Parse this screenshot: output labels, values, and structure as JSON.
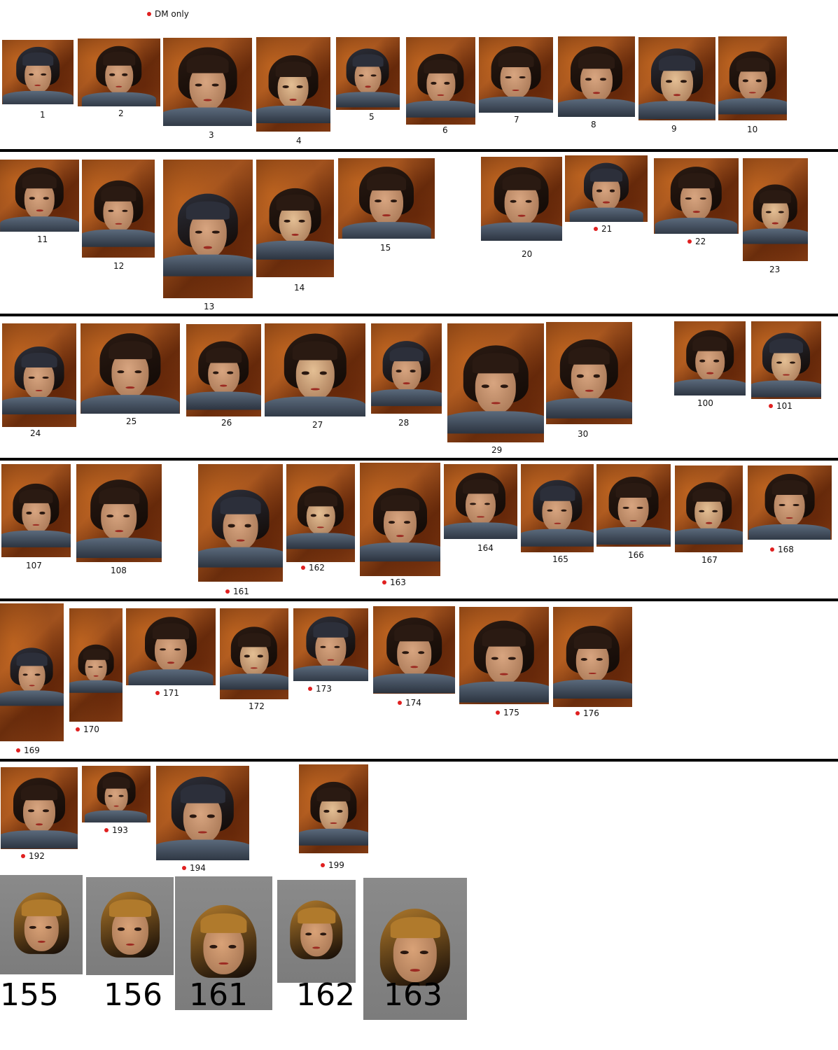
{
  "legend": {
    "label": "DM only",
    "dot_color": "#e02020"
  },
  "colors": {
    "dm_dot": "#e02020",
    "separator": "#000000"
  },
  "rows": [
    {
      "tiles": [
        {
          "label": "1",
          "dm": false
        },
        {
          "label": "2",
          "dm": false
        },
        {
          "label": "3",
          "dm": false
        },
        {
          "label": "4",
          "dm": false
        },
        {
          "label": "5",
          "dm": false
        },
        {
          "label": "6",
          "dm": false
        },
        {
          "label": "7",
          "dm": false
        },
        {
          "label": "8",
          "dm": false
        },
        {
          "label": "9",
          "dm": false
        },
        {
          "label": "10",
          "dm": false
        }
      ]
    },
    {
      "tiles": [
        {
          "label": "11",
          "dm": false
        },
        {
          "label": "12",
          "dm": false
        },
        {
          "label": "13",
          "dm": false
        },
        {
          "label": "14",
          "dm": false
        },
        {
          "label": "15",
          "dm": false
        },
        {
          "label": "20",
          "dm": false
        },
        {
          "label": "21",
          "dm": true
        },
        {
          "label": "22",
          "dm": true
        },
        {
          "label": "23",
          "dm": false
        }
      ]
    },
    {
      "tiles": [
        {
          "label": "24",
          "dm": false
        },
        {
          "label": "25",
          "dm": false
        },
        {
          "label": "26",
          "dm": false
        },
        {
          "label": "27",
          "dm": false
        },
        {
          "label": "28",
          "dm": false
        },
        {
          "label": "29",
          "dm": false
        },
        {
          "label": "30",
          "dm": false
        },
        {
          "label": "100",
          "dm": false
        },
        {
          "label": "101",
          "dm": true
        }
      ]
    },
    {
      "tiles": [
        {
          "label": "107",
          "dm": false
        },
        {
          "label": "108",
          "dm": false
        },
        {
          "label": "161",
          "dm": true
        },
        {
          "label": "162",
          "dm": true
        },
        {
          "label": "163",
          "dm": true
        },
        {
          "label": "164",
          "dm": false
        },
        {
          "label": "165",
          "dm": false
        },
        {
          "label": "166",
          "dm": false
        },
        {
          "label": "167",
          "dm": false
        },
        {
          "label": "168",
          "dm": true
        }
      ]
    },
    {
      "tiles": [
        {
          "label": "169",
          "dm": true
        },
        {
          "label": "170",
          "dm": true
        },
        {
          "label": "171",
          "dm": true
        },
        {
          "label": "172",
          "dm": false
        },
        {
          "label": "173",
          "dm": true
        },
        {
          "label": "174",
          "dm": true
        },
        {
          "label": "175",
          "dm": true
        },
        {
          "label": "176",
          "dm": true
        }
      ]
    },
    {
      "tiles": [
        {
          "label": "192",
          "dm": true
        },
        {
          "label": "193",
          "dm": true
        },
        {
          "label": "194",
          "dm": true
        },
        {
          "label": "199",
          "dm": true
        }
      ]
    },
    {
      "tiles": [
        {
          "label": "155",
          "dm": false
        },
        {
          "label": "156",
          "dm": false
        },
        {
          "label": "161",
          "dm": false
        },
        {
          "label": "162",
          "dm": false
        },
        {
          "label": "163",
          "dm": false
        }
      ]
    }
  ]
}
